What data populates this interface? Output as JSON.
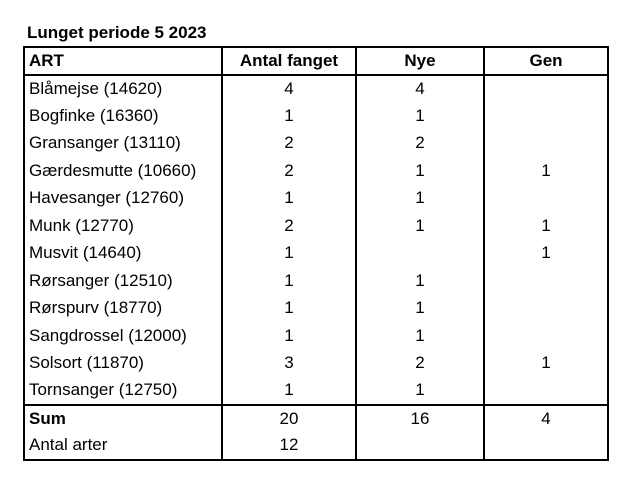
{
  "title": "Lunget periode 5 2023",
  "table": {
    "headers": [
      "ART",
      "Antal fanget",
      "Nye",
      "Gen"
    ],
    "rows": [
      {
        "art": "Blåmejse (14620)",
        "antal": "4",
        "nye": "4",
        "gen": ""
      },
      {
        "art": "Bogfinke (16360)",
        "antal": "1",
        "nye": "1",
        "gen": ""
      },
      {
        "art": "Gransanger (13110)",
        "antal": "2",
        "nye": "2",
        "gen": ""
      },
      {
        "art": "Gærdesmutte (10660)",
        "antal": "2",
        "nye": "1",
        "gen": "1"
      },
      {
        "art": "Havesanger (12760)",
        "antal": "1",
        "nye": "1",
        "gen": ""
      },
      {
        "art": "Munk (12770)",
        "antal": "2",
        "nye": "1",
        "gen": "1"
      },
      {
        "art": "Musvit (14640)",
        "antal": "1",
        "nye": "",
        "gen": "1"
      },
      {
        "art": "Rørsanger (12510)",
        "antal": "1",
        "nye": "1",
        "gen": ""
      },
      {
        "art": "Rørspurv (18770)",
        "antal": "1",
        "nye": "1",
        "gen": ""
      },
      {
        "art": "Sangdrossel (12000)",
        "antal": "1",
        "nye": "1",
        "gen": ""
      },
      {
        "art": "Solsort (11870)",
        "antal": "3",
        "nye": "2",
        "gen": "1"
      },
      {
        "art": "Tornsanger (12750)",
        "antal": "1",
        "nye": "1",
        "gen": ""
      }
    ],
    "sum": {
      "label": "Sum",
      "antal": "20",
      "nye": "16",
      "gen": "4"
    },
    "arter": {
      "label": "Antal arter",
      "antal": "12"
    }
  }
}
